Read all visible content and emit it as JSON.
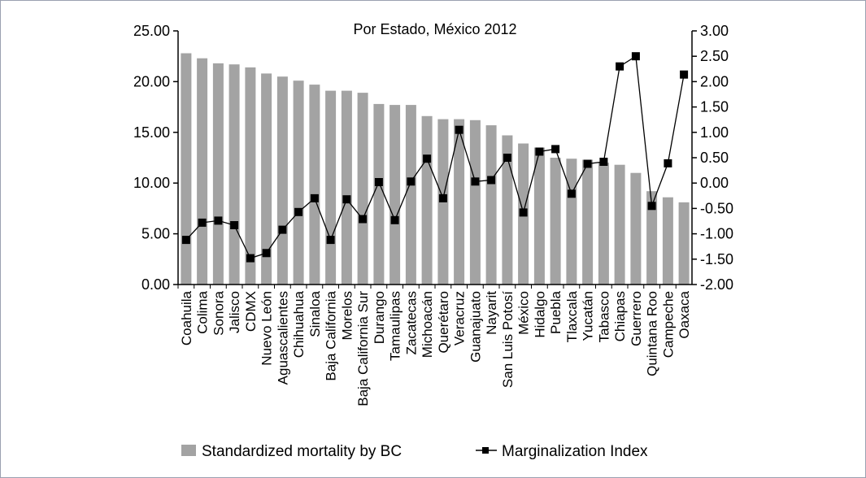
{
  "chart_data": {
    "type": "bar",
    "title": "Por Estado, México 2012",
    "categories": [
      "Coahuila",
      "Colima",
      "Sonora",
      "Jalisco",
      "CDMX",
      "Nuevo León",
      "Aguascalientes",
      "Chihuahua",
      "Sinaloa",
      "Baja California",
      "Morelos",
      "Baja California Sur",
      "Durango",
      "Tamaulipas",
      "Zacatecas",
      "Michoacán",
      "Querétaro",
      "Veracruz",
      "Guanajuato",
      "Nayarit",
      "San Luis Potosí",
      "México",
      "Hidalgo",
      "Puebla",
      "Tlaxcala",
      "Yucatán",
      "Tabasco",
      "Chiapas",
      "Guerrero",
      "Quintana Roo",
      "Campeche",
      "Oaxaca"
    ],
    "series": [
      {
        "name": "Standardized mortality by BC",
        "type": "bar",
        "axis": "left",
        "color": "#a3a3a3",
        "values": [
          22.8,
          22.3,
          21.8,
          21.7,
          21.4,
          20.8,
          20.5,
          20.1,
          19.7,
          19.1,
          19.1,
          18.9,
          17.8,
          17.7,
          17.7,
          16.6,
          16.3,
          16.3,
          16.2,
          15.7,
          14.7,
          13.9,
          13.5,
          12.5,
          12.4,
          12.3,
          12.0,
          11.8,
          11.0,
          9.2,
          8.6,
          8.1
        ]
      },
      {
        "name": "Marginalization Index",
        "type": "line",
        "axis": "right",
        "color": "#000000",
        "values": [
          -1.12,
          -0.78,
          -0.74,
          -0.83,
          -1.48,
          -1.38,
          -0.92,
          -0.57,
          -0.3,
          -1.12,
          -0.32,
          -0.71,
          0.02,
          -0.73,
          0.03,
          0.48,
          -0.3,
          1.05,
          0.03,
          0.06,
          0.5,
          -0.58,
          0.62,
          0.67,
          -0.21,
          0.38,
          0.42,
          2.3,
          2.5,
          -0.45,
          0.39,
          2.14
        ]
      }
    ],
    "y_left": {
      "min": 0,
      "max": 25,
      "ticks": [
        "0.00",
        "5.00",
        "10.00",
        "15.00",
        "20.00",
        "25.00"
      ]
    },
    "y_right": {
      "min": -2,
      "max": 3,
      "ticks": [
        "-2.00",
        "-1.50",
        "-1.00",
        "-0.50",
        "0.00",
        "0.50",
        "1.00",
        "1.50",
        "2.00",
        "2.50",
        "3.00"
      ]
    },
    "legend": {
      "position": "bottom",
      "items": [
        "Standardized mortality by BC",
        "Marginalization Index"
      ]
    },
    "grid": false
  }
}
